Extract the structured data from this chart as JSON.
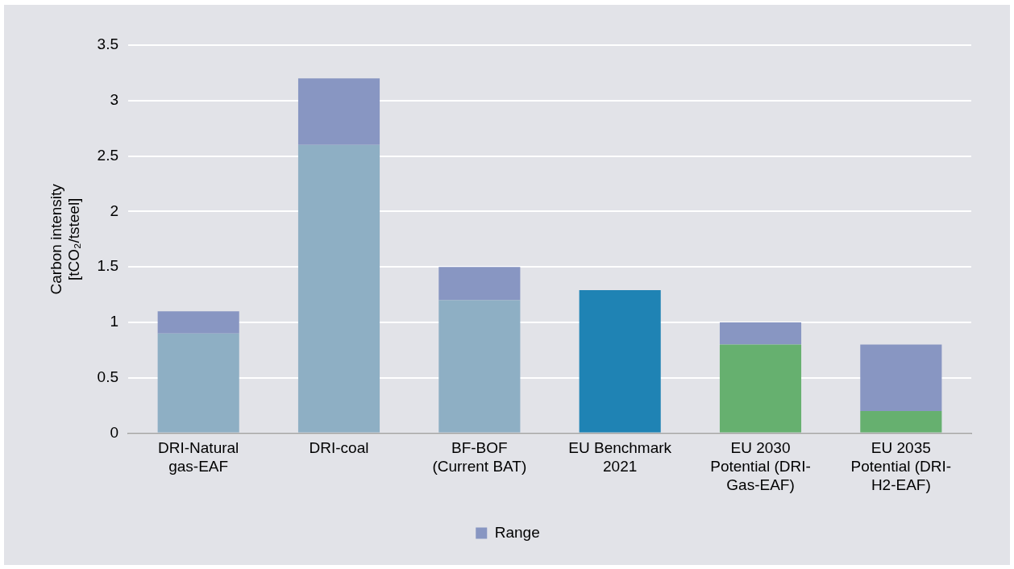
{
  "chart_data": {
    "type": "bar",
    "stacked": true,
    "ylabel": "Carbon intensity [tCO₂/tsteel]",
    "categories": [
      "DRI-Natural gas-EAF",
      "DRI-coal",
      "BF-BOF (Current BAT)",
      "EU Benchmark 2021",
      "EU 2030 Potential (DRI-Gas-EAF)",
      "EU 2035 Potential (DRI-H2-EAF)"
    ],
    "series": [
      {
        "colors": [
          "#8eafc4",
          "#8eafc4",
          "#8eafc4",
          "#1f83b4",
          "#66b06f",
          "#66b06f"
        ],
        "values": [
          0.9,
          2.6,
          1.2,
          1.29,
          0.8,
          0.2
        ]
      },
      {
        "name": "Range",
        "color": "#8896c2",
        "values": [
          0.2,
          0.6,
          0.3,
          null,
          0.2,
          0.6
        ]
      }
    ],
    "ylim": [
      0,
      3.5
    ],
    "yticks": [
      0,
      0.5,
      1,
      1.5,
      2,
      2.5,
      3,
      3.5
    ],
    "grid": "y",
    "legend": "bottom"
  }
}
